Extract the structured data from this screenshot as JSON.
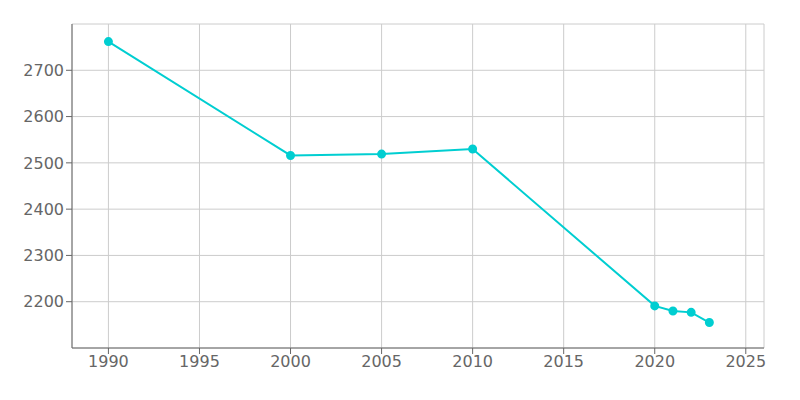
{
  "chart_data": {
    "type": "line",
    "x": [
      1990,
      2000,
      2005,
      2010,
      2020,
      2021,
      2022,
      2023
    ],
    "values": [
      2762,
      2516,
      2519,
      2530,
      2191,
      2180,
      2177,
      2155
    ],
    "color": "#00CED1",
    "marker": "circle",
    "xlim": [
      1988,
      2026
    ],
    "ylim": [
      2100,
      2800
    ],
    "xticks": [
      1990,
      1995,
      2000,
      2005,
      2010,
      2015,
      2020,
      2025
    ],
    "yticks": [
      2200,
      2300,
      2400,
      2500,
      2600,
      2700
    ],
    "grid": true
  }
}
